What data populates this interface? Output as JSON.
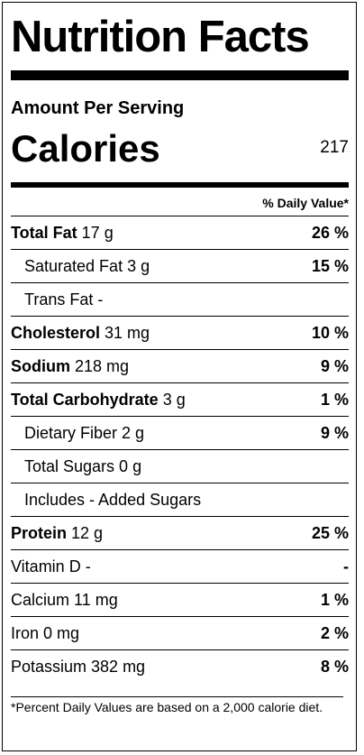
{
  "title": "Nutrition Facts",
  "amount_per_serving": "Amount Per Serving",
  "calories": {
    "label": "Calories",
    "value": "217"
  },
  "daily_value_header": "% Daily Value*",
  "nutrients": [
    {
      "name": "Total Fat",
      "amount": " 17 g",
      "dv": "26 %",
      "bold": true,
      "indent": false
    },
    {
      "name": "",
      "amount": "Saturated Fat 3 g",
      "dv": "15 %",
      "bold": false,
      "indent": true
    },
    {
      "name": "",
      "amount": "Trans Fat -",
      "dv": "",
      "bold": false,
      "indent": true
    },
    {
      "name": "Cholesterol",
      "amount": " 31 mg",
      "dv": "10 %",
      "bold": true,
      "indent": false
    },
    {
      "name": "Sodium",
      "amount": " 218 mg",
      "dv": "9 %",
      "bold": true,
      "indent": false
    },
    {
      "name": "Total Carbohydrate",
      "amount": " 3 g",
      "dv": "1 %",
      "bold": true,
      "indent": false
    },
    {
      "name": "",
      "amount": "Dietary Fiber 2 g",
      "dv": "9 %",
      "bold": false,
      "indent": true
    },
    {
      "name": "",
      "amount": "Total Sugars 0 g",
      "dv": "",
      "bold": false,
      "indent": true
    },
    {
      "name": "",
      "amount": "Includes - Added Sugars",
      "dv": "",
      "bold": false,
      "indent": true
    },
    {
      "name": "Protein",
      "amount": " 12 g",
      "dv": "25 %",
      "bold": true,
      "indent": false
    }
  ],
  "vitamins": [
    {
      "label": "Vitamin D -",
      "dv": "-"
    },
    {
      "label": "Calcium 11 mg",
      "dv": "1 %"
    },
    {
      "label": "Iron 0 mg",
      "dv": "2 %"
    },
    {
      "label": "Potassium 382 mg",
      "dv": "8 %"
    }
  ],
  "footnote": "*Percent Daily Values are based on a 2,000 calorie diet."
}
